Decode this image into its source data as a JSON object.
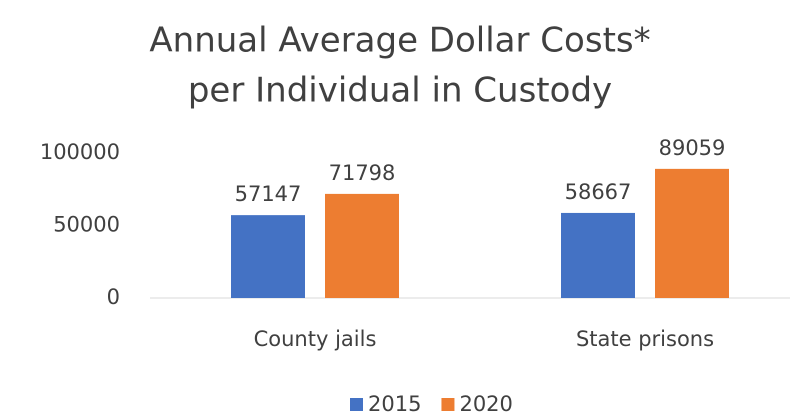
{
  "chart_data": {
    "type": "bar",
    "title": [
      "Annual Average Dollar Costs*",
      "per Individual in Custody"
    ],
    "categories": [
      "County jails",
      "State prisons"
    ],
    "series": [
      {
        "name": "2015",
        "color": "#4472c4",
        "values": [
          57147,
          58667
        ]
      },
      {
        "name": "2020",
        "color": "#ed7d31",
        "values": [
          71798,
          89059
        ]
      }
    ],
    "ylim": [
      0,
      100000
    ],
    "yticks": [
      0,
      50000,
      100000
    ],
    "grid": false,
    "legend": "bottom"
  }
}
